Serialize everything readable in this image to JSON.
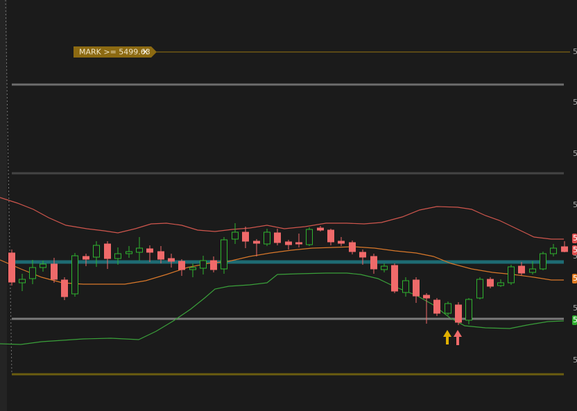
{
  "alert": {
    "label": "MARK >= 5499.63"
  },
  "price_axis": {
    "labels": [
      "5",
      "5",
      "5",
      "5",
      "5",
      "5",
      "5"
    ]
  },
  "price_tags": [
    "5",
    "5",
    "5",
    "5"
  ]
}
